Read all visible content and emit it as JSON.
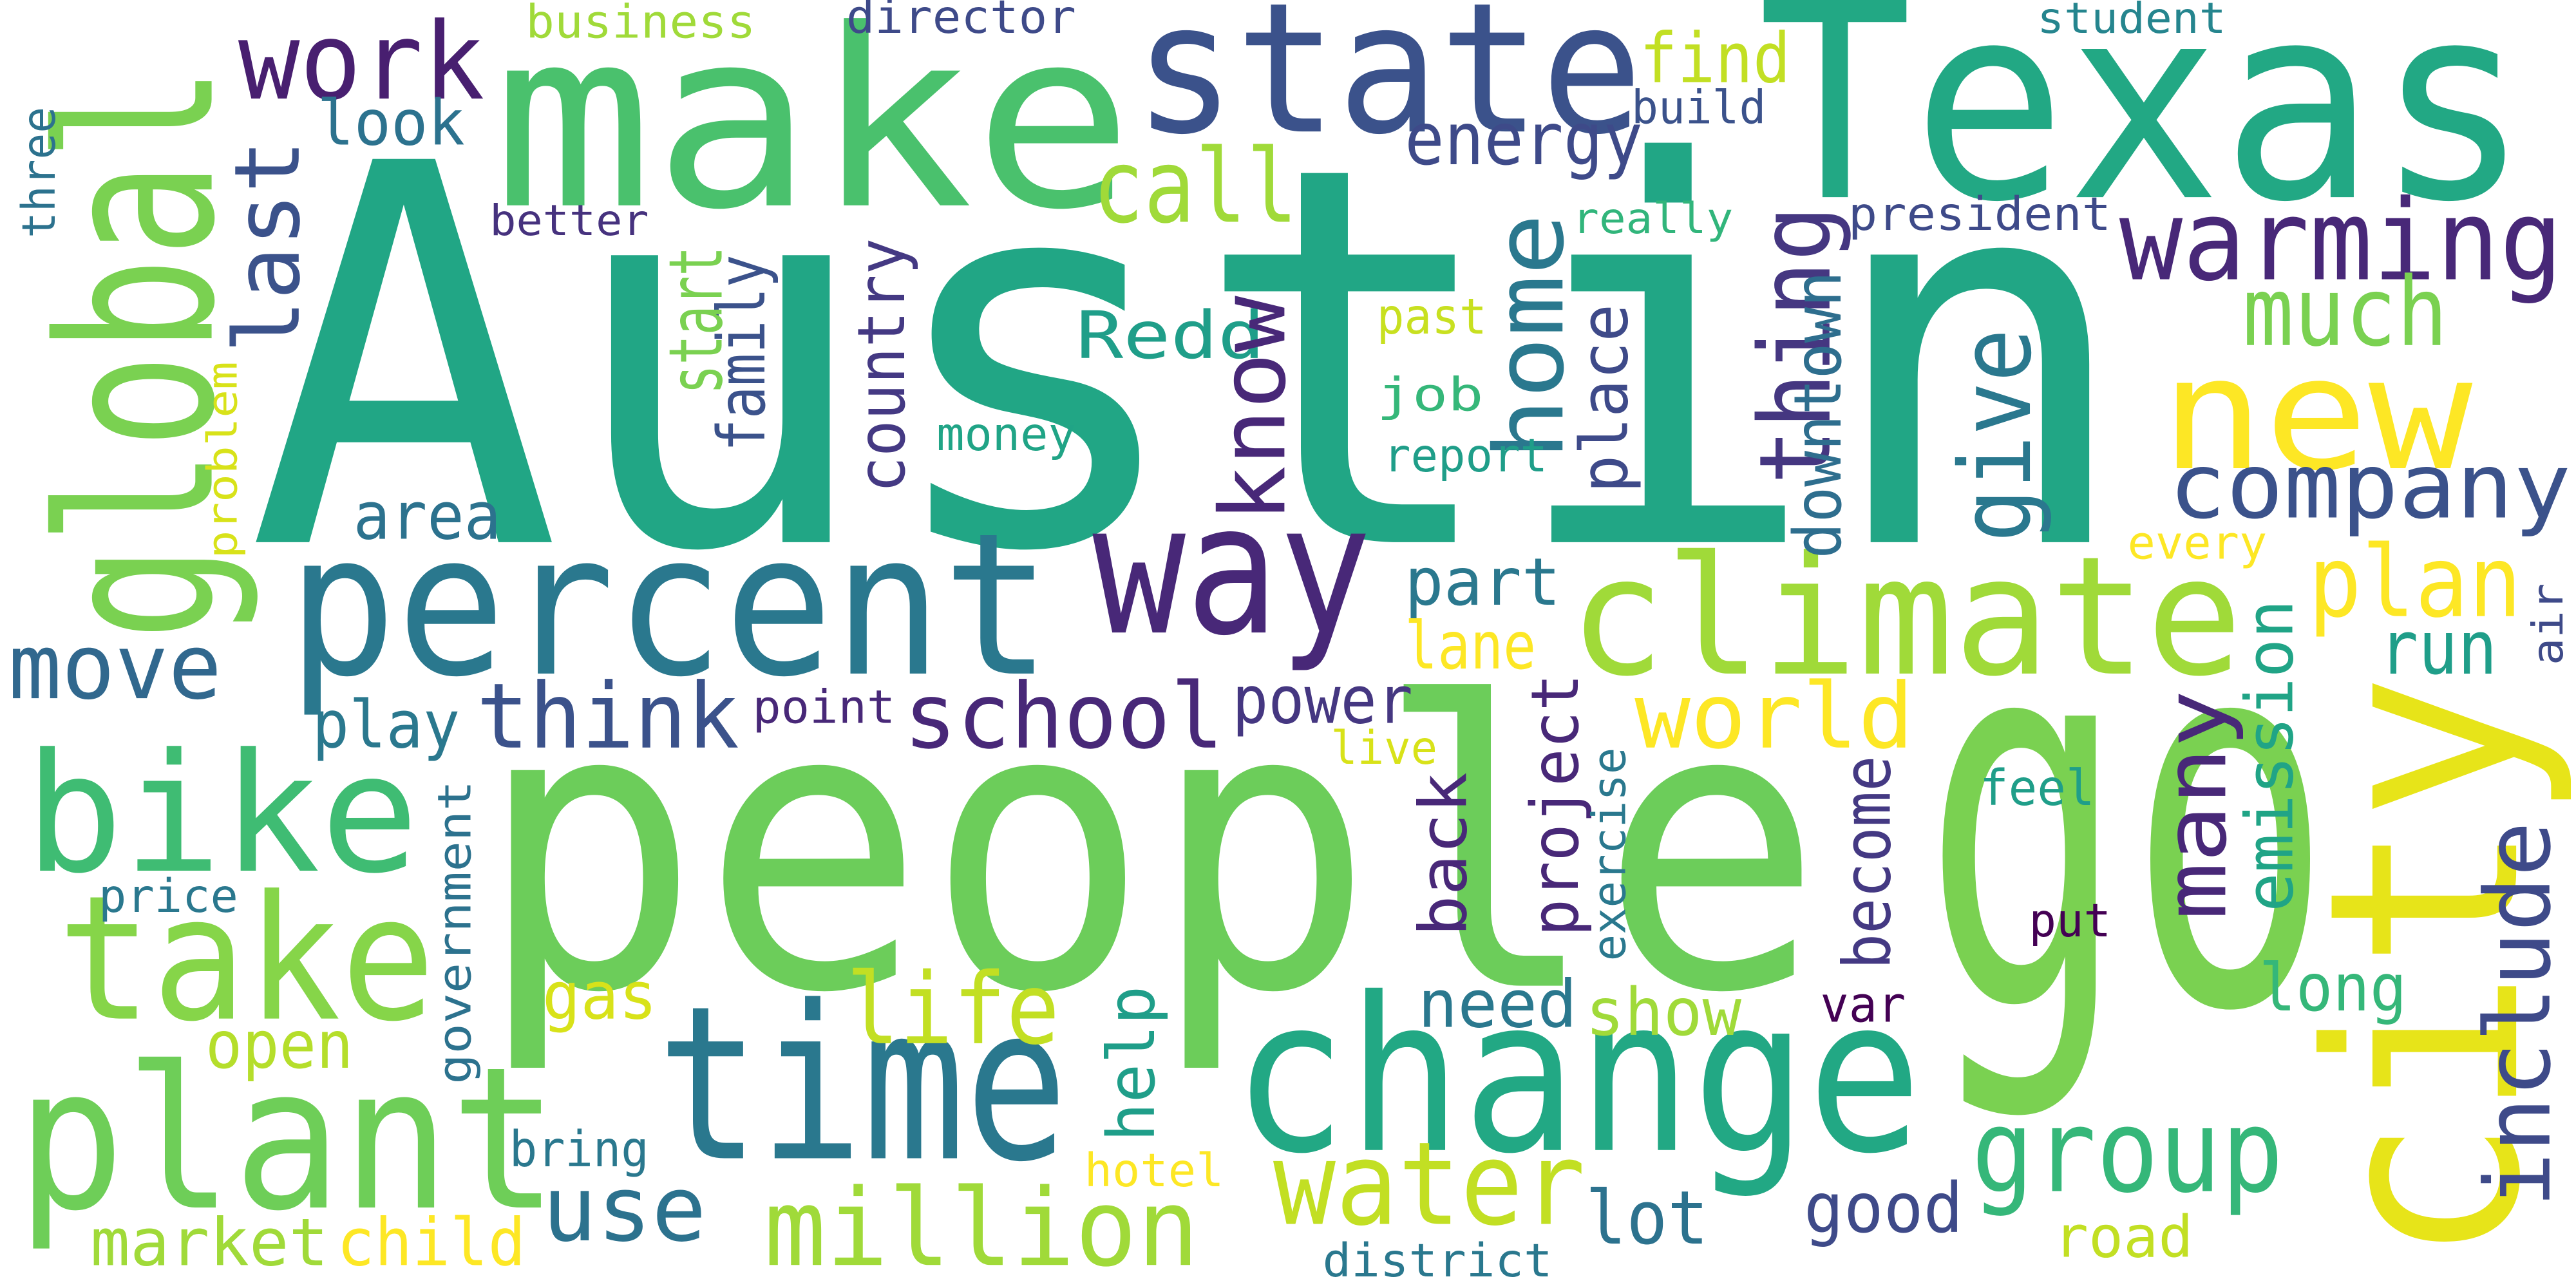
{
  "words": [
    {
      "text": "Austin",
      "color": "#21a685"
    },
    {
      "text": "people",
      "color": "#6ccd5a"
    },
    {
      "text": "Texas",
      "color": "#22a884"
    },
    {
      "text": "make",
      "color": "#4ac16d"
    },
    {
      "text": "state",
      "color": "#3b528b"
    },
    {
      "text": "go",
      "color": "#7ad151"
    },
    {
      "text": "city",
      "color": "#e7e419"
    },
    {
      "text": "global",
      "color": "#7ad151"
    },
    {
      "text": "percent",
      "color": "#2a788e"
    },
    {
      "text": "way",
      "color": "#482878"
    },
    {
      "text": "climate",
      "color": "#a0da39"
    },
    {
      "text": "change",
      "color": "#22a884"
    },
    {
      "text": "time",
      "color": "#2a788e"
    },
    {
      "text": "plant",
      "color": "#6ece58"
    },
    {
      "text": "take",
      "color": "#86d549"
    },
    {
      "text": "bike",
      "color": "#3fbc73"
    },
    {
      "text": "move",
      "color": "#31688e"
    },
    {
      "text": "work",
      "color": "#481f70"
    },
    {
      "text": "business",
      "color": "#a0da39"
    },
    {
      "text": "director",
      "color": "#3e4a89"
    },
    {
      "text": "student",
      "color": "#25858e"
    },
    {
      "text": "find",
      "color": "#c2df23"
    },
    {
      "text": "build",
      "color": "#3b528b"
    },
    {
      "text": "three",
      "color": "#2c728e"
    },
    {
      "text": "look",
      "color": "#2c728e"
    },
    {
      "text": "last",
      "color": "#3b528b"
    },
    {
      "text": "better",
      "color": "#46327e"
    },
    {
      "text": "call",
      "color": "#a0da39"
    },
    {
      "text": "energy",
      "color": "#3e4a89"
    },
    {
      "text": "really",
      "color": "#31b57b"
    },
    {
      "text": "president",
      "color": "#3e4a89"
    },
    {
      "text": "warming",
      "color": "#482878"
    },
    {
      "text": "thing",
      "color": "#453781"
    },
    {
      "text": "home",
      "color": "#2a788e"
    },
    {
      "text": "family",
      "color": "#3b528b"
    },
    {
      "text": "start",
      "color": "#7ad151"
    },
    {
      "text": "country",
      "color": "#443983"
    },
    {
      "text": "downtown",
      "color": "#2e6e8e"
    },
    {
      "text": "much",
      "color": "#7ad151"
    },
    {
      "text": "new",
      "color": "#fde725"
    },
    {
      "text": "past",
      "color": "#c8e020"
    },
    {
      "text": "Redd",
      "color": "#1f9e89"
    },
    {
      "text": "know",
      "color": "#482878"
    },
    {
      "text": "job",
      "color": "#35b779"
    },
    {
      "text": "place",
      "color": "#3e4a89"
    },
    {
      "text": "give",
      "color": "#2a788e"
    },
    {
      "text": "money",
      "color": "#20a486"
    },
    {
      "text": "report",
      "color": "#1f9e89"
    },
    {
      "text": "company",
      "color": "#3b528b"
    },
    {
      "text": "area",
      "color": "#2c728e"
    },
    {
      "text": "problem",
      "color": "#d8e219"
    },
    {
      "text": "every",
      "color": "#fde725"
    },
    {
      "text": "plan",
      "color": "#fde725"
    },
    {
      "text": "air",
      "color": "#3e4a89"
    },
    {
      "text": "emission",
      "color": "#20a486"
    },
    {
      "text": "run",
      "color": "#1f9e89"
    },
    {
      "text": "part",
      "color": "#2a788e"
    },
    {
      "text": "lane",
      "color": "#fde725"
    },
    {
      "text": "play",
      "color": "#2a788e"
    },
    {
      "text": "think",
      "color": "#3b528b"
    },
    {
      "text": "point",
      "color": "#482878"
    },
    {
      "text": "school",
      "color": "#482878"
    },
    {
      "text": "power",
      "color": "#453781"
    },
    {
      "text": "live",
      "color": "#d8e219"
    },
    {
      "text": "world",
      "color": "#fde725"
    },
    {
      "text": "project",
      "color": "#482878"
    },
    {
      "text": "exercise",
      "color": "#2a788e"
    },
    {
      "text": "back",
      "color": "#482878"
    },
    {
      "text": "become",
      "color": "#443983"
    },
    {
      "text": "many",
      "color": "#482878"
    },
    {
      "text": "feel",
      "color": "#1f9e89"
    },
    {
      "text": "price",
      "color": "#2a788e"
    },
    {
      "text": "government",
      "color": "#2c728e"
    },
    {
      "text": "put",
      "color": "#440154"
    },
    {
      "text": "include",
      "color": "#3e4a89"
    },
    {
      "text": "long",
      "color": "#35b779"
    },
    {
      "text": "gas",
      "color": "#d8e219"
    },
    {
      "text": "life",
      "color": "#c2df23"
    },
    {
      "text": "need",
      "color": "#2a788e"
    },
    {
      "text": "show",
      "color": "#a0da39"
    },
    {
      "text": "var",
      "color": "#440154"
    },
    {
      "text": "open",
      "color": "#b5de2b"
    },
    {
      "text": "help",
      "color": "#1f9e89"
    },
    {
      "text": "bring",
      "color": "#2a788e"
    },
    {
      "text": "hotel",
      "color": "#fde725"
    },
    {
      "text": "group",
      "color": "#35b779"
    },
    {
      "text": "water",
      "color": "#c2df23"
    },
    {
      "text": "use",
      "color": "#2c728e"
    },
    {
      "text": "million",
      "color": "#a0da39"
    },
    {
      "text": "lot",
      "color": "#2c728e"
    },
    {
      "text": "good",
      "color": "#3e4a89"
    },
    {
      "text": "road",
      "color": "#c2df23"
    },
    {
      "text": "market",
      "color": "#a0da39"
    },
    {
      "text": "child",
      "color": "#fde725"
    },
    {
      "text": "district",
      "color": "#2a788e"
    }
  ]
}
